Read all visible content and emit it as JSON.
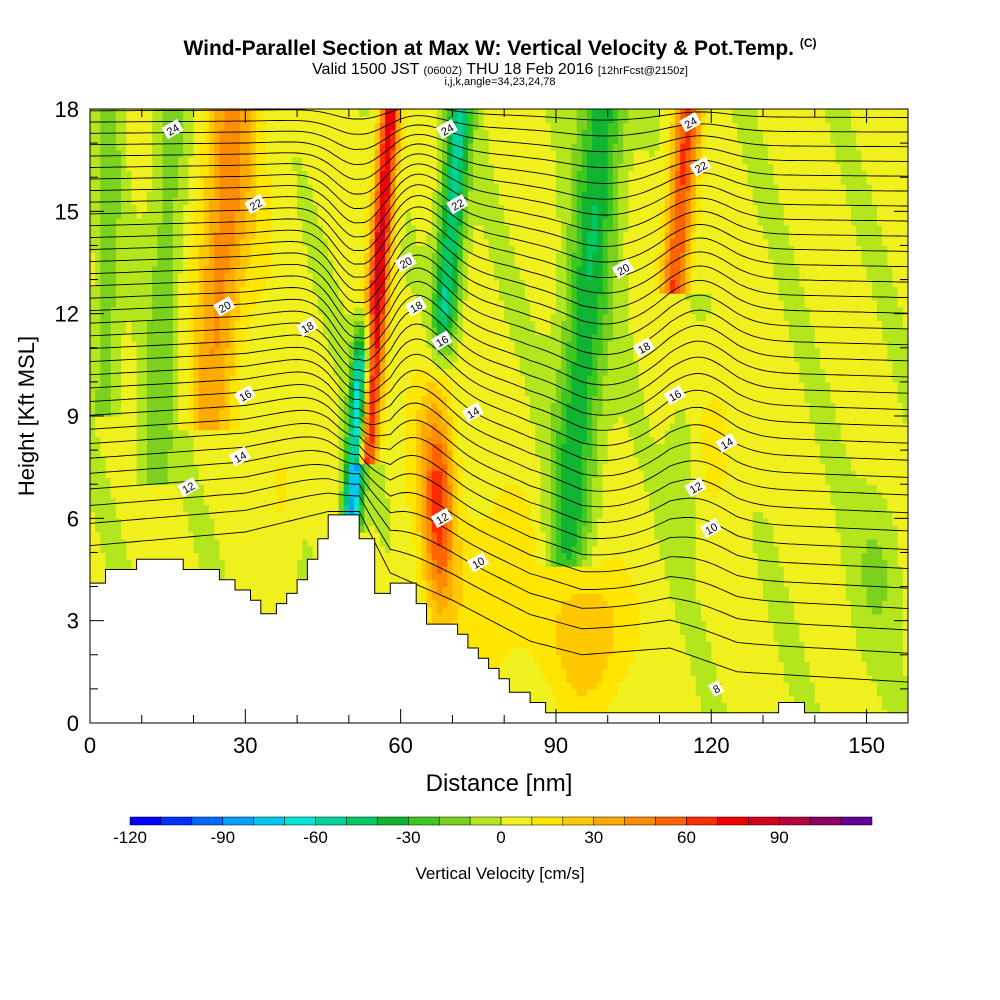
{
  "title": {
    "main": "Wind-Parallel Section at Max W: Vertical Velocity & Pot.Temp.",
    "copyright": "(C)",
    "valid_prefix": "Valid 1500 JST",
    "valid_utc": "(0600Z)",
    "valid_date": "THU 18 Feb 2016",
    "forecast": "[12hrFcst@2150z]",
    "indices": "i,j,k,angle=34,23,24,78"
  },
  "colorbar": {
    "label": "Vertical Velocity [cm/s]",
    "ticks": [
      "-120",
      "-90",
      "-60",
      "-30",
      "0",
      "30",
      "60",
      "90"
    ],
    "tick_values": [
      -120,
      -90,
      -60,
      -30,
      0,
      30,
      60,
      90
    ],
    "levels": [
      -120,
      -110,
      -100,
      -90,
      -80,
      -70,
      -60,
      -50,
      -40,
      -30,
      -20,
      -10,
      0,
      10,
      20,
      30,
      40,
      50,
      60,
      70,
      80,
      90,
      100,
      110
    ],
    "colors": [
      "#0000ff",
      "#0030ff",
      "#0068ff",
      "#00a0ff",
      "#00c8f0",
      "#00e6d2",
      "#00d29b",
      "#00c864",
      "#10b432",
      "#3cc81e",
      "#7ad21e",
      "#b4e61e",
      "#f0f01e",
      "#ffe600",
      "#ffc800",
      "#ffaa00",
      "#ff8c00",
      "#ff6400",
      "#ff2d00",
      "#f00000",
      "#d2001e",
      "#b4003c",
      "#8c0064",
      "#640096"
    ]
  },
  "chart_data": {
    "type": "heatmap",
    "xlabel": "Distance [nm]",
    "ylabel": "Height [Kft MSL]",
    "xlim": [
      0,
      158
    ],
    "ylim": [
      0,
      18
    ],
    "xticks": [
      "0",
      "30",
      "60",
      "90",
      "120",
      "150"
    ],
    "xtick_values": [
      0,
      30,
      60,
      90,
      120,
      150
    ],
    "yticks": [
      "0",
      "3",
      "6",
      "9",
      "12",
      "15",
      "18"
    ],
    "ytick_values": [
      0,
      3,
      6,
      9,
      12,
      15,
      18
    ],
    "field": "Vertical Velocity [cm/s]",
    "contour_field": "Potential Temperature",
    "features": [
      {
        "kind": "downdraft",
        "x": 51,
        "zmin": 6,
        "zmax": 12,
        "w": -85
      },
      {
        "kind": "updraft",
        "x": 55,
        "zmin": 8,
        "zmax": 18,
        "w": 75
      },
      {
        "kind": "downdraft",
        "x": 71,
        "zmin": 11,
        "zmax": 18,
        "w": -55
      },
      {
        "kind": "updraft",
        "x": 67,
        "zmin": 4,
        "zmax": 9,
        "w": 40
      },
      {
        "kind": "downdraft",
        "x": 99,
        "zmin": 5,
        "zmax": 18,
        "w": -45
      },
      {
        "kind": "updraft",
        "x": 117,
        "zmin": 13,
        "zmax": 18,
        "w": 65
      },
      {
        "kind": "updraft",
        "x": 28,
        "zmin": 9,
        "zmax": 18,
        "w": 35
      },
      {
        "kind": "downdraft",
        "x": 15,
        "zmin": 7,
        "zmax": 18,
        "w": -20
      },
      {
        "kind": "updraft",
        "x": 97,
        "zmin": 1,
        "zmax": 4,
        "w": 30
      }
    ],
    "contour_labels": [
      {
        "text": "24",
        "x": 16,
        "z": 17.4
      },
      {
        "text": "24",
        "x": 69,
        "z": 17.4
      },
      {
        "text": "24",
        "x": 116,
        "z": 17.6
      },
      {
        "text": "22",
        "x": 32,
        "z": 15.2
      },
      {
        "text": "22",
        "x": 71,
        "z": 15.2
      },
      {
        "text": "22",
        "x": 118,
        "z": 16.3
      },
      {
        "text": "20",
        "x": 26,
        "z": 12.2
      },
      {
        "text": "20",
        "x": 61,
        "z": 13.5
      },
      {
        "text": "20",
        "x": 103,
        "z": 13.3
      },
      {
        "text": "18",
        "x": 42,
        "z": 11.6
      },
      {
        "text": "18",
        "x": 63,
        "z": 12.2
      },
      {
        "text": "18",
        "x": 107,
        "z": 11.0
      },
      {
        "text": "16",
        "x": 30,
        "z": 9.6
      },
      {
        "text": "16",
        "x": 68,
        "z": 11.2
      },
      {
        "text": "16",
        "x": 113,
        "z": 9.6
      },
      {
        "text": "14",
        "x": 29,
        "z": 7.8
      },
      {
        "text": "14",
        "x": 74,
        "z": 9.1
      },
      {
        "text": "14",
        "x": 123,
        "z": 8.2
      },
      {
        "text": "12",
        "x": 19,
        "z": 6.9
      },
      {
        "text": "12",
        "x": 68,
        "z": 6.0
      },
      {
        "text": "12",
        "x": 117,
        "z": 6.9
      },
      {
        "text": "10",
        "x": 75,
        "z": 4.7
      },
      {
        "text": "10",
        "x": 120,
        "z": 5.7
      },
      {
        "text": "8",
        "x": 121,
        "z": 1.0
      }
    ],
    "terrain": [
      [
        0,
        4.1
      ],
      [
        3,
        4.1
      ],
      [
        3,
        4.5
      ],
      [
        9,
        4.5
      ],
      [
        9,
        4.8
      ],
      [
        18,
        4.8
      ],
      [
        18,
        4.5
      ],
      [
        25,
        4.5
      ],
      [
        25,
        4.2
      ],
      [
        28,
        4.2
      ],
      [
        28,
        3.9
      ],
      [
        31,
        3.9
      ],
      [
        31,
        3.6
      ],
      [
        33,
        3.6
      ],
      [
        33,
        3.2
      ],
      [
        36,
        3.2
      ],
      [
        36,
        3.5
      ],
      [
        38,
        3.5
      ],
      [
        38,
        3.8
      ],
      [
        40,
        3.8
      ],
      [
        40,
        4.2
      ],
      [
        42,
        4.2
      ],
      [
        42,
        4.8
      ],
      [
        44,
        4.8
      ],
      [
        44,
        5.4
      ],
      [
        46,
        5.4
      ],
      [
        46,
        6.1
      ],
      [
        52,
        6.1
      ],
      [
        52,
        5.4
      ],
      [
        55,
        5.4
      ],
      [
        55,
        3.8
      ],
      [
        58,
        3.8
      ],
      [
        58,
        4.1
      ],
      [
        63,
        4.1
      ],
      [
        63,
        3.5
      ],
      [
        65,
        3.5
      ],
      [
        65,
        2.9
      ],
      [
        71,
        2.9
      ],
      [
        71,
        2.6
      ],
      [
        73,
        2.6
      ],
      [
        73,
        2.2
      ],
      [
        75,
        2.2
      ],
      [
        75,
        1.9
      ],
      [
        77,
        1.9
      ],
      [
        77,
        1.6
      ],
      [
        79,
        1.6
      ],
      [
        79,
        1.3
      ],
      [
        81,
        1.3
      ],
      [
        81,
        0.9
      ],
      [
        85,
        0.9
      ],
      [
        85,
        0.6
      ],
      [
        88,
        0.6
      ],
      [
        88,
        0.3
      ],
      [
        133,
        0.3
      ],
      [
        133,
        0.6
      ],
      [
        138,
        0.6
      ],
      [
        138,
        0.3
      ],
      [
        158,
        0.3
      ],
      [
        158,
        0
      ],
      [
        0,
        0
      ]
    ]
  }
}
